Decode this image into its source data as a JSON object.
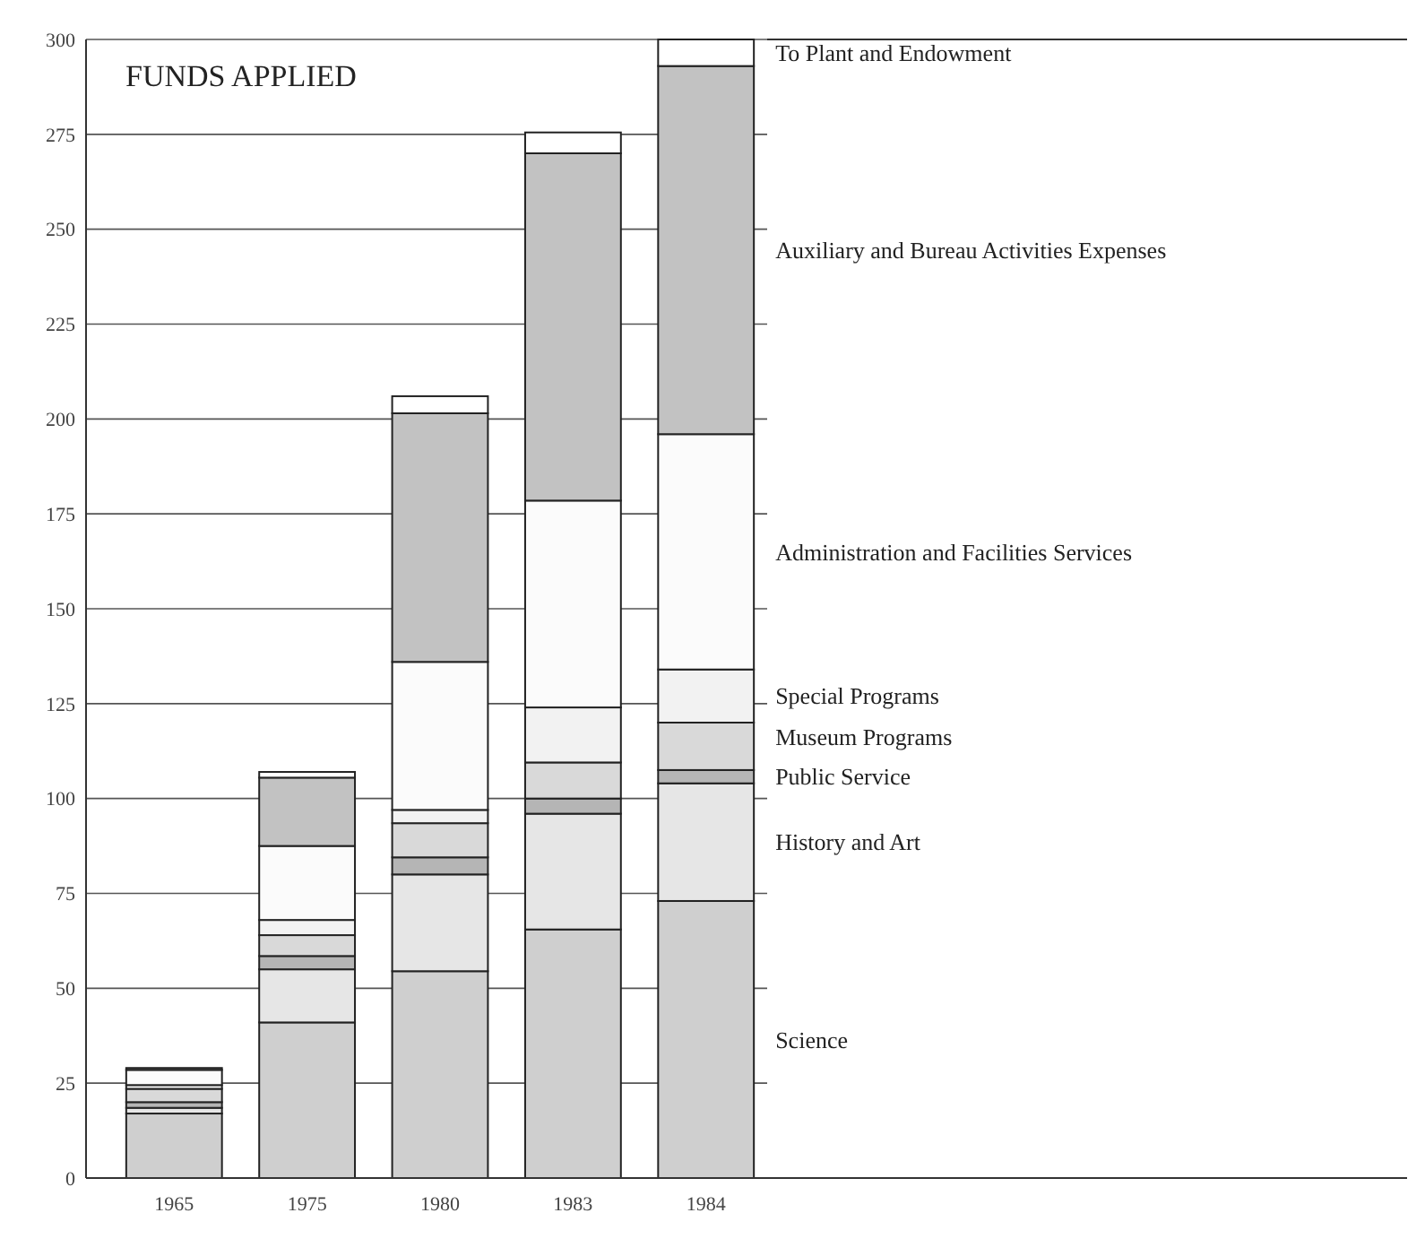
{
  "chart_data": {
    "type": "bar",
    "title": "FUNDS APPLIED",
    "stacked": true,
    "categories": [
      "1965",
      "1975",
      "1980",
      "1983",
      "1984"
    ],
    "ylim": [
      0,
      300
    ],
    "yticks": [
      0,
      25,
      50,
      75,
      100,
      125,
      150,
      175,
      200,
      225,
      250,
      275,
      300
    ],
    "grid": "y",
    "legend": "right",
    "series": [
      {
        "name": "Science",
        "color": "#cfcfcf",
        "values": [
          17,
          41,
          54.5,
          65.5,
          73
        ]
      },
      {
        "name": "History and Art",
        "color": "#e6e6e6",
        "values": [
          1.5,
          14,
          25.5,
          30.5,
          31
        ]
      },
      {
        "name": "Public Service",
        "color": "#b5b5b5",
        "values": [
          1.5,
          3.5,
          4.5,
          4,
          3.5
        ]
      },
      {
        "name": "Museum Programs",
        "color": "#d9d9d9",
        "values": [
          3.5,
          5.5,
          9,
          9.5,
          12.5
        ]
      },
      {
        "name": "Special Programs",
        "color": "#f2f2f2",
        "values": [
          1,
          4,
          3.5,
          14.5,
          14
        ]
      },
      {
        "name": "Administration and Facilities Services",
        "color": "#fbfbfb",
        "values": [
          4,
          19.5,
          39,
          54.5,
          62
        ]
      },
      {
        "name": "Auxiliary and Bureau Activities Expenses",
        "color": "#c2c2c2",
        "values": [
          null,
          18,
          65.5,
          91.5,
          97
        ]
      },
      {
        "name": "To Plant and Endowment",
        "color": "#ffffff",
        "values": [
          0.5,
          1.5,
          4.5,
          5.5,
          7
        ]
      }
    ]
  }
}
